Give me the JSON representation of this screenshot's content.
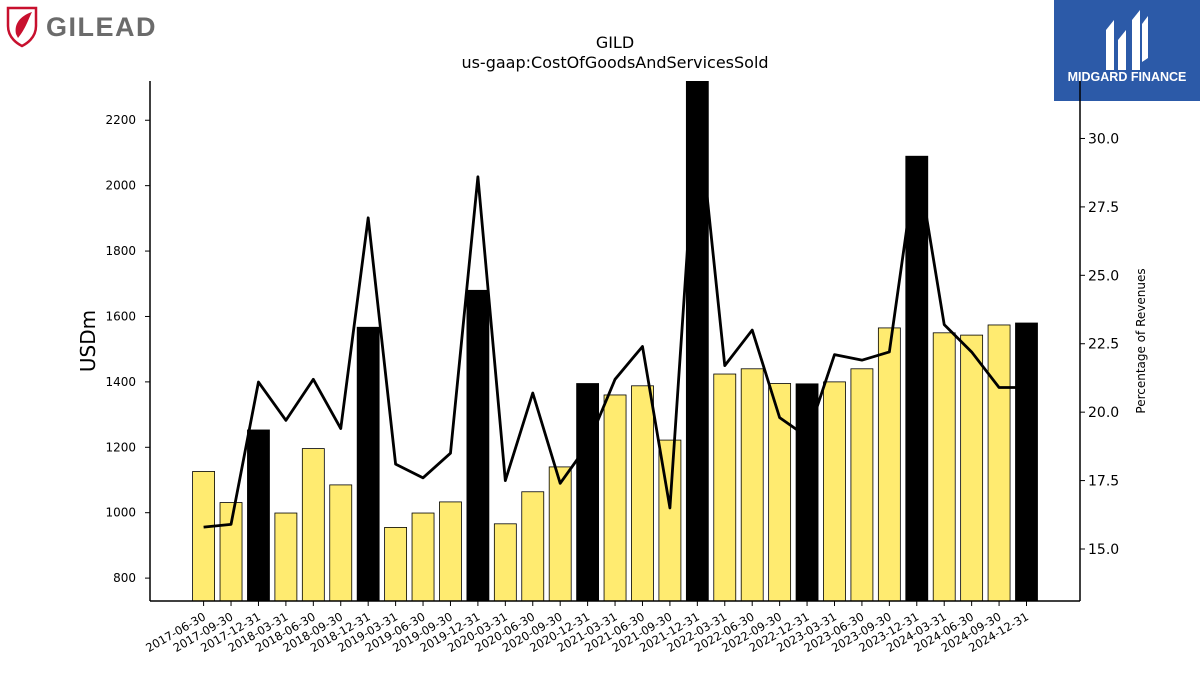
{
  "brand": {
    "left_logo_text": "GILEAD",
    "right_logo_text": "MIDGARD FINANCE",
    "left_logo_color": "#6b6b6b",
    "left_logo_mark_color": "#c8102e",
    "right_logo_bg": "#2c5aa8"
  },
  "chart_data": {
    "type": "bar",
    "title": "GILD",
    "subtitle": "us-gaap:CostOfGoodsAndServicesSold",
    "ylabel": "USDm",
    "y2label": "Percentage of Revenues",
    "ylim": [
      730,
      2320
    ],
    "y2lim": [
      13.1,
      32.1
    ],
    "yticks": [
      800,
      1000,
      1200,
      1400,
      1600,
      1800,
      2000,
      2200
    ],
    "y2ticks": [
      "15.0",
      "17.5",
      "20.0",
      "22.5",
      "25.0",
      "27.5",
      "30.0"
    ],
    "bar_colors": {
      "quarter": "#ffeb70",
      "year_end": "#000000"
    },
    "line_color": "#000000",
    "categories": [
      "2017-06-30",
      "2017-09-30",
      "2017-12-31",
      "2018-03-31",
      "2018-06-30",
      "2018-09-30",
      "2018-12-31",
      "2019-03-31",
      "2019-06-30",
      "2019-09-30",
      "2019-12-31",
      "2020-03-31",
      "2020-06-30",
      "2020-09-30",
      "2020-12-31",
      "2021-03-31",
      "2021-06-30",
      "2021-09-30",
      "2021-12-31",
      "2022-03-31",
      "2022-06-30",
      "2022-09-30",
      "2022-12-31",
      "2023-03-31",
      "2023-06-30",
      "2023-09-30",
      "2023-12-31",
      "2024-03-31",
      "2024-06-30",
      "2024-09-30",
      "2024-12-31"
    ],
    "series": [
      {
        "kind": "bar",
        "values": [
          1126,
          1031,
          1253,
          999,
          1196,
          1085,
          1567,
          955,
          999,
          1033,
          1680,
          966,
          1064,
          1140,
          1395,
          1360,
          1388,
          1222,
          2320,
          1424,
          1440,
          1395,
          1394,
          1400,
          1440,
          1565,
          2090,
          1550,
          1543,
          1574,
          1580
        ],
        "year_end": [
          false,
          false,
          true,
          false,
          false,
          false,
          true,
          false,
          false,
          false,
          true,
          false,
          false,
          false,
          true,
          false,
          false,
          false,
          true,
          false,
          false,
          false,
          true,
          false,
          false,
          false,
          true,
          false,
          false,
          false,
          true
        ]
      },
      {
        "kind": "line",
        "axis": "right",
        "values": [
          15.8,
          15.9,
          21.1,
          19.7,
          21.2,
          19.4,
          27.1,
          18.1,
          17.6,
          18.5,
          28.6,
          17.5,
          20.7,
          17.4,
          18.8,
          21.2,
          22.4,
          16.5,
          31.3,
          21.7,
          23.0,
          19.8,
          19.1,
          22.1,
          21.9,
          22.2,
          29.3,
          23.2,
          22.2,
          20.9,
          20.9
        ]
      }
    ]
  }
}
